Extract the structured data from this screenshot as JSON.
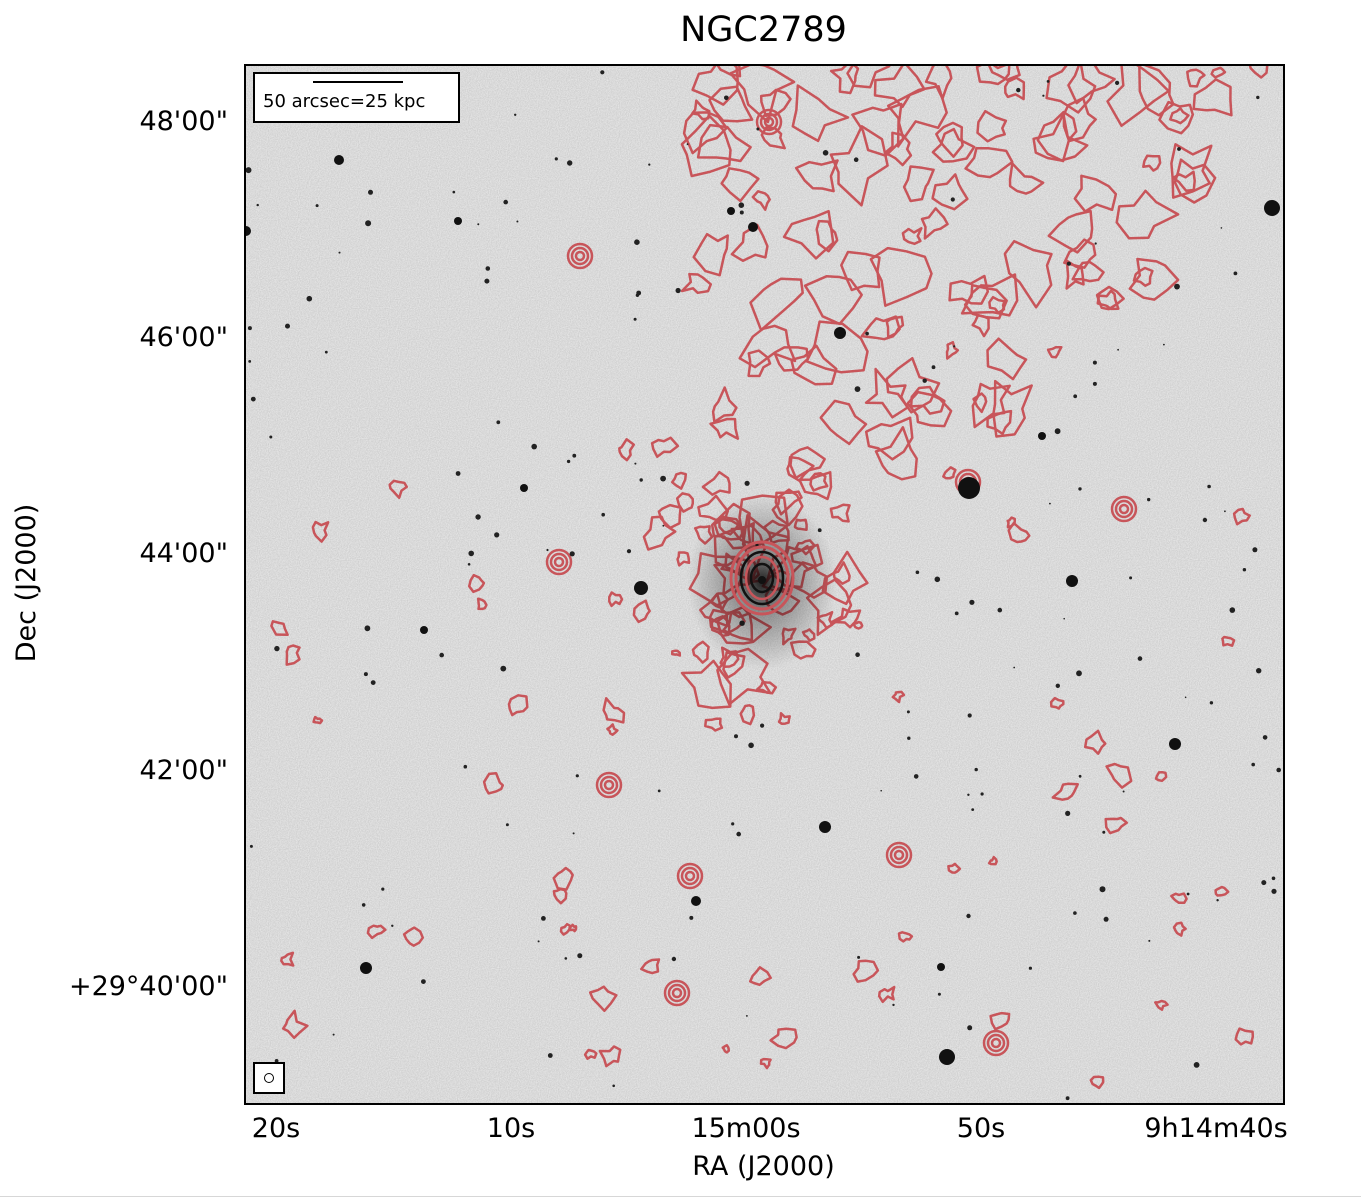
{
  "figure": {
    "title": "NGC2789",
    "xlabel": "RA (J2000)",
    "ylabel": "Dec (J2000)",
    "xticks": [
      "20s",
      "10s",
      "15m00s",
      "50s",
      "9h14m40s"
    ],
    "yticks": [
      "48'00\"",
      "46'00\"",
      "44'00\"",
      "42'00\"",
      "+29°40'00\""
    ],
    "scalebar_label": "50 arcsec=25 kpc",
    "contour_color": "#c8555a",
    "background_color": "#efefef",
    "source_color": "#111111"
  }
}
